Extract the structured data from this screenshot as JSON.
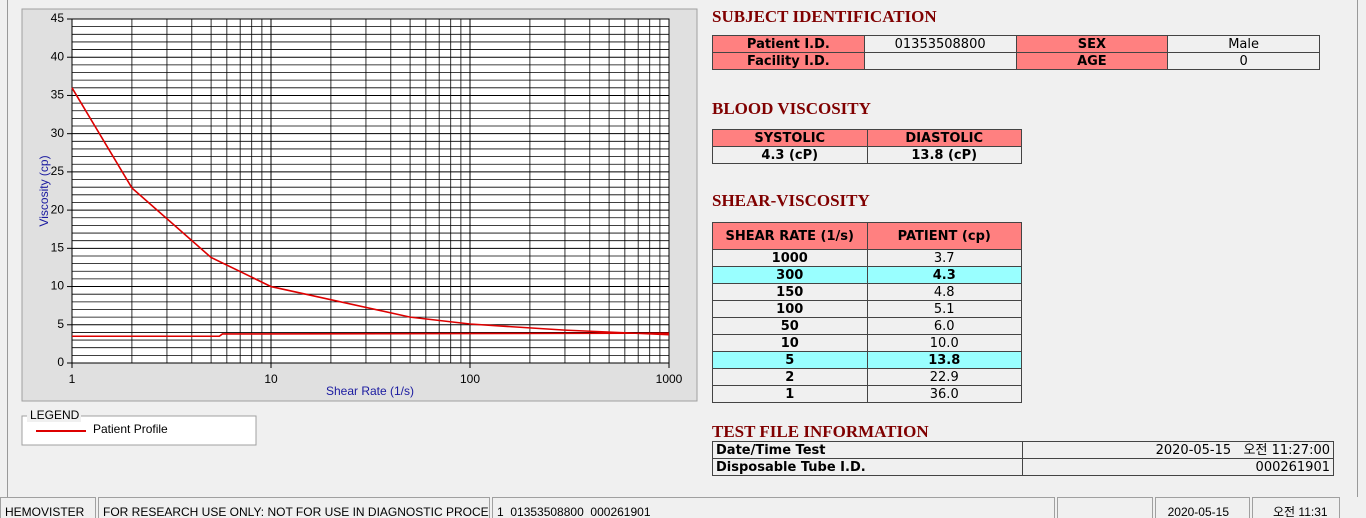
{
  "chart_data": {
    "type": "line",
    "x_label": "Shear Rate (1/s)",
    "y_label": "Viscosity (cp)",
    "xscale": "log",
    "xlim": [
      1,
      1000
    ],
    "xticks": [
      1,
      10,
      100,
      1000
    ],
    "ylim": [
      0,
      45
    ],
    "yticks": [
      0,
      5,
      10,
      15,
      20,
      25,
      30,
      35,
      40,
      45
    ],
    "grid": true,
    "minor_grid": true,
    "series": [
      {
        "name": "Patient Profile",
        "color": "#dd0000",
        "x": [
          1,
          2,
          5,
          10,
          50,
          100,
          150,
          300,
          1000
        ],
        "values": [
          36.0,
          22.9,
          13.8,
          10.0,
          6.0,
          5.1,
          4.8,
          4.3,
          3.7
        ]
      },
      {
        "color": "#dd0000",
        "x": [
          1,
          5.5,
          5.7,
          1000
        ],
        "values": [
          3.5,
          3.5,
          3.8,
          3.9
        ]
      }
    ]
  },
  "legend": {
    "title": "LEGEND"
  },
  "subject": {
    "title": "SUBJECT IDENTIFICATION",
    "patient_id_label": "Patient I.D.",
    "patient_id": "01353508800",
    "sex_label": "SEX",
    "sex": "Male",
    "facility_label": "Facility I.D.",
    "age_label": "AGE",
    "age": "0"
  },
  "blood": {
    "title": "BLOOD VISCOSITY",
    "headers": [
      "SYSTOLIC",
      "DIASTOLIC"
    ],
    "values": [
      "4.3 (cP)",
      "13.8 (cP)"
    ]
  },
  "shear": {
    "title": "SHEAR-VISCOSITY",
    "headers": [
      "SHEAR RATE (1/s)",
      "PATIENT (cp)"
    ],
    "highlight_rows": [
      1,
      6
    ],
    "rows": [
      [
        "1000",
        "3.7"
      ],
      [
        "300",
        "4.3"
      ],
      [
        "150",
        "4.8"
      ],
      [
        "100",
        "5.1"
      ],
      [
        "50",
        "6.0"
      ],
      [
        "10",
        "10.0"
      ],
      [
        "5",
        "13.8"
      ],
      [
        "2",
        "22.9"
      ],
      [
        "1",
        "36.0"
      ]
    ]
  },
  "test_file": {
    "title": "TEST FILE INFORMATION",
    "rows": [
      [
        "Date/Time Test",
        "2020-05-15   오전 11:27:00"
      ],
      [
        "Disposable Tube I.D.",
        "000261901"
      ]
    ]
  },
  "status": [
    "HEMOVISTER",
    "FOR RESEARCH USE ONLY: NOT FOR USE IN DIAGNOSTIC PROCEDURES",
    "1  01353508800  000261901",
    "2020-05-15",
    "오전 11:31"
  ]
}
